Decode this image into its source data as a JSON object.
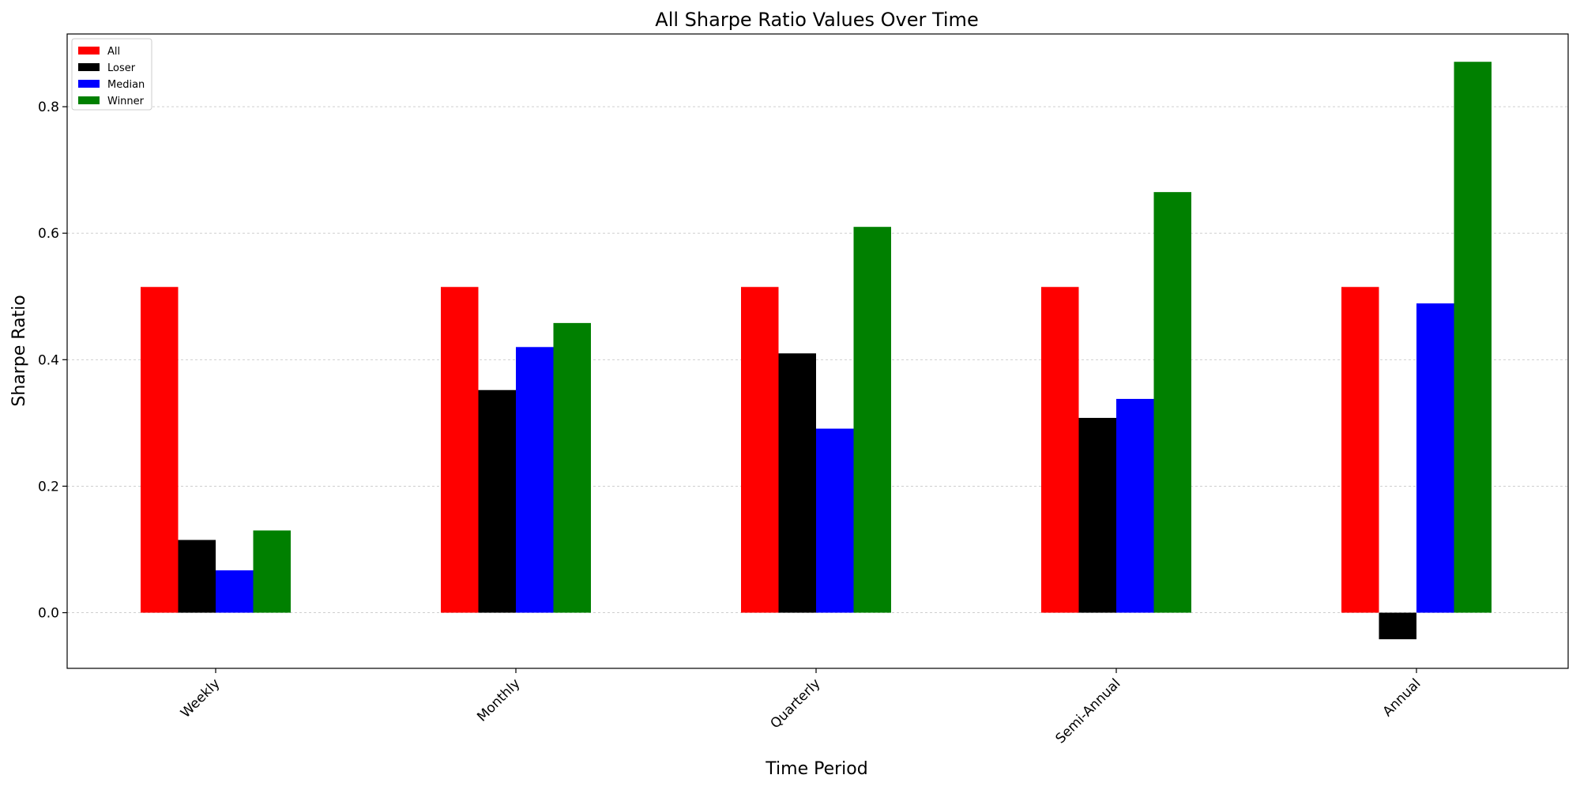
{
  "chart_data": {
    "type": "bar",
    "title": "All Sharpe Ratio Values Over Time",
    "xlabel": "Time Period",
    "ylabel": "Sharpe Ratio",
    "categories": [
      "Weekly",
      "Monthly",
      "Quarterly",
      "Semi-Annual",
      "Annual"
    ],
    "series": [
      {
        "name": "All",
        "color": "#ff0000",
        "values": [
          0.515,
          0.515,
          0.515,
          0.515,
          0.515
        ]
      },
      {
        "name": "Loser",
        "color": "#000000",
        "values": [
          0.115,
          0.352,
          0.41,
          0.308,
          -0.042
        ]
      },
      {
        "name": "Median",
        "color": "#0000ff",
        "values": [
          0.067,
          0.42,
          0.291,
          0.338,
          0.489
        ]
      },
      {
        "name": "Winner",
        "color": "#008000",
        "values": [
          0.13,
          0.458,
          0.61,
          0.665,
          0.871
        ]
      }
    ],
    "ylim": [
      -0.088,
      0.915
    ],
    "yticks": [
      0.0,
      0.2,
      0.4,
      0.6,
      0.8
    ],
    "ytick_labels": [
      "0.0",
      "0.2",
      "0.4",
      "0.6",
      "0.8"
    ],
    "grid": "horizontal dotted",
    "legend_position": "top-left"
  }
}
